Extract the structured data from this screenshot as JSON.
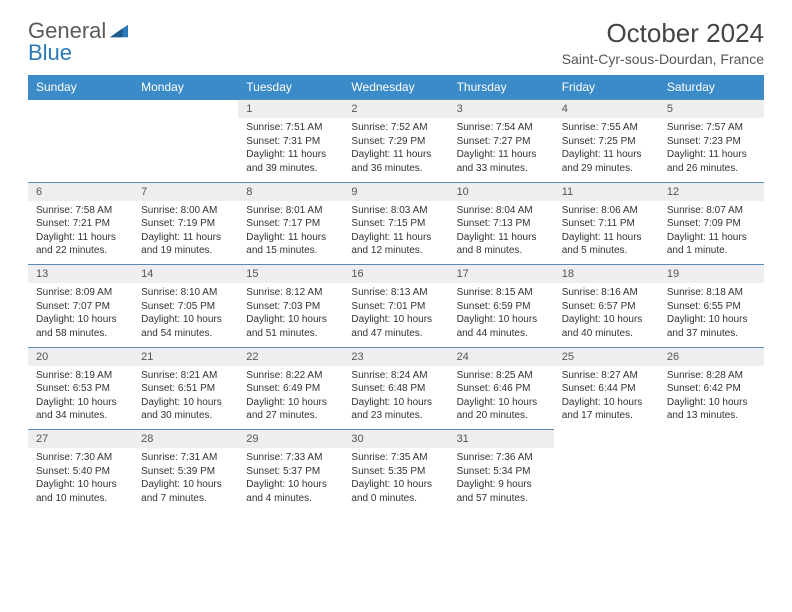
{
  "logo": {
    "general": "General",
    "blue": "Blue"
  },
  "title": "October 2024",
  "location": "Saint-Cyr-sous-Dourdan, France",
  "colors": {
    "header_bg": "#3b8bc9",
    "header_text": "#ffffff",
    "numrow_bg": "#eeeeee",
    "numrow_border": "#5a8bb5",
    "body_text": "#333333",
    "logo_gray": "#5a5a5a",
    "logo_blue": "#2a7ab9",
    "page_bg": "#ffffff"
  },
  "day_names": [
    "Sunday",
    "Monday",
    "Tuesday",
    "Wednesday",
    "Thursday",
    "Friday",
    "Saturday"
  ],
  "weeks": [
    {
      "nums": [
        "",
        "",
        "1",
        "2",
        "3",
        "4",
        "5"
      ],
      "cells": [
        null,
        null,
        {
          "sr": "Sunrise: 7:51 AM",
          "ss": "Sunset: 7:31 PM",
          "d1": "Daylight: 11 hours",
          "d2": "and 39 minutes."
        },
        {
          "sr": "Sunrise: 7:52 AM",
          "ss": "Sunset: 7:29 PM",
          "d1": "Daylight: 11 hours",
          "d2": "and 36 minutes."
        },
        {
          "sr": "Sunrise: 7:54 AM",
          "ss": "Sunset: 7:27 PM",
          "d1": "Daylight: 11 hours",
          "d2": "and 33 minutes."
        },
        {
          "sr": "Sunrise: 7:55 AM",
          "ss": "Sunset: 7:25 PM",
          "d1": "Daylight: 11 hours",
          "d2": "and 29 minutes."
        },
        {
          "sr": "Sunrise: 7:57 AM",
          "ss": "Sunset: 7:23 PM",
          "d1": "Daylight: 11 hours",
          "d2": "and 26 minutes."
        }
      ]
    },
    {
      "nums": [
        "6",
        "7",
        "8",
        "9",
        "10",
        "11",
        "12"
      ],
      "cells": [
        {
          "sr": "Sunrise: 7:58 AM",
          "ss": "Sunset: 7:21 PM",
          "d1": "Daylight: 11 hours",
          "d2": "and 22 minutes."
        },
        {
          "sr": "Sunrise: 8:00 AM",
          "ss": "Sunset: 7:19 PM",
          "d1": "Daylight: 11 hours",
          "d2": "and 19 minutes."
        },
        {
          "sr": "Sunrise: 8:01 AM",
          "ss": "Sunset: 7:17 PM",
          "d1": "Daylight: 11 hours",
          "d2": "and 15 minutes."
        },
        {
          "sr": "Sunrise: 8:03 AM",
          "ss": "Sunset: 7:15 PM",
          "d1": "Daylight: 11 hours",
          "d2": "and 12 minutes."
        },
        {
          "sr": "Sunrise: 8:04 AM",
          "ss": "Sunset: 7:13 PM",
          "d1": "Daylight: 11 hours",
          "d2": "and 8 minutes."
        },
        {
          "sr": "Sunrise: 8:06 AM",
          "ss": "Sunset: 7:11 PM",
          "d1": "Daylight: 11 hours",
          "d2": "and 5 minutes."
        },
        {
          "sr": "Sunrise: 8:07 AM",
          "ss": "Sunset: 7:09 PM",
          "d1": "Daylight: 11 hours",
          "d2": "and 1 minute."
        }
      ]
    },
    {
      "nums": [
        "13",
        "14",
        "15",
        "16",
        "17",
        "18",
        "19"
      ],
      "cells": [
        {
          "sr": "Sunrise: 8:09 AM",
          "ss": "Sunset: 7:07 PM",
          "d1": "Daylight: 10 hours",
          "d2": "and 58 minutes."
        },
        {
          "sr": "Sunrise: 8:10 AM",
          "ss": "Sunset: 7:05 PM",
          "d1": "Daylight: 10 hours",
          "d2": "and 54 minutes."
        },
        {
          "sr": "Sunrise: 8:12 AM",
          "ss": "Sunset: 7:03 PM",
          "d1": "Daylight: 10 hours",
          "d2": "and 51 minutes."
        },
        {
          "sr": "Sunrise: 8:13 AM",
          "ss": "Sunset: 7:01 PM",
          "d1": "Daylight: 10 hours",
          "d2": "and 47 minutes."
        },
        {
          "sr": "Sunrise: 8:15 AM",
          "ss": "Sunset: 6:59 PM",
          "d1": "Daylight: 10 hours",
          "d2": "and 44 minutes."
        },
        {
          "sr": "Sunrise: 8:16 AM",
          "ss": "Sunset: 6:57 PM",
          "d1": "Daylight: 10 hours",
          "d2": "and 40 minutes."
        },
        {
          "sr": "Sunrise: 8:18 AM",
          "ss": "Sunset: 6:55 PM",
          "d1": "Daylight: 10 hours",
          "d2": "and 37 minutes."
        }
      ]
    },
    {
      "nums": [
        "20",
        "21",
        "22",
        "23",
        "24",
        "25",
        "26"
      ],
      "cells": [
        {
          "sr": "Sunrise: 8:19 AM",
          "ss": "Sunset: 6:53 PM",
          "d1": "Daylight: 10 hours",
          "d2": "and 34 minutes."
        },
        {
          "sr": "Sunrise: 8:21 AM",
          "ss": "Sunset: 6:51 PM",
          "d1": "Daylight: 10 hours",
          "d2": "and 30 minutes."
        },
        {
          "sr": "Sunrise: 8:22 AM",
          "ss": "Sunset: 6:49 PM",
          "d1": "Daylight: 10 hours",
          "d2": "and 27 minutes."
        },
        {
          "sr": "Sunrise: 8:24 AM",
          "ss": "Sunset: 6:48 PM",
          "d1": "Daylight: 10 hours",
          "d2": "and 23 minutes."
        },
        {
          "sr": "Sunrise: 8:25 AM",
          "ss": "Sunset: 6:46 PM",
          "d1": "Daylight: 10 hours",
          "d2": "and 20 minutes."
        },
        {
          "sr": "Sunrise: 8:27 AM",
          "ss": "Sunset: 6:44 PM",
          "d1": "Daylight: 10 hours",
          "d2": "and 17 minutes."
        },
        {
          "sr": "Sunrise: 8:28 AM",
          "ss": "Sunset: 6:42 PM",
          "d1": "Daylight: 10 hours",
          "d2": "and 13 minutes."
        }
      ]
    },
    {
      "nums": [
        "27",
        "28",
        "29",
        "30",
        "31",
        "",
        ""
      ],
      "cells": [
        {
          "sr": "Sunrise: 7:30 AM",
          "ss": "Sunset: 5:40 PM",
          "d1": "Daylight: 10 hours",
          "d2": "and 10 minutes."
        },
        {
          "sr": "Sunrise: 7:31 AM",
          "ss": "Sunset: 5:39 PM",
          "d1": "Daylight: 10 hours",
          "d2": "and 7 minutes."
        },
        {
          "sr": "Sunrise: 7:33 AM",
          "ss": "Sunset: 5:37 PM",
          "d1": "Daylight: 10 hours",
          "d2": "and 4 minutes."
        },
        {
          "sr": "Sunrise: 7:35 AM",
          "ss": "Sunset: 5:35 PM",
          "d1": "Daylight: 10 hours",
          "d2": "and 0 minutes."
        },
        {
          "sr": "Sunrise: 7:36 AM",
          "ss": "Sunset: 5:34 PM",
          "d1": "Daylight: 9 hours",
          "d2": "and 57 minutes."
        },
        null,
        null
      ]
    }
  ]
}
